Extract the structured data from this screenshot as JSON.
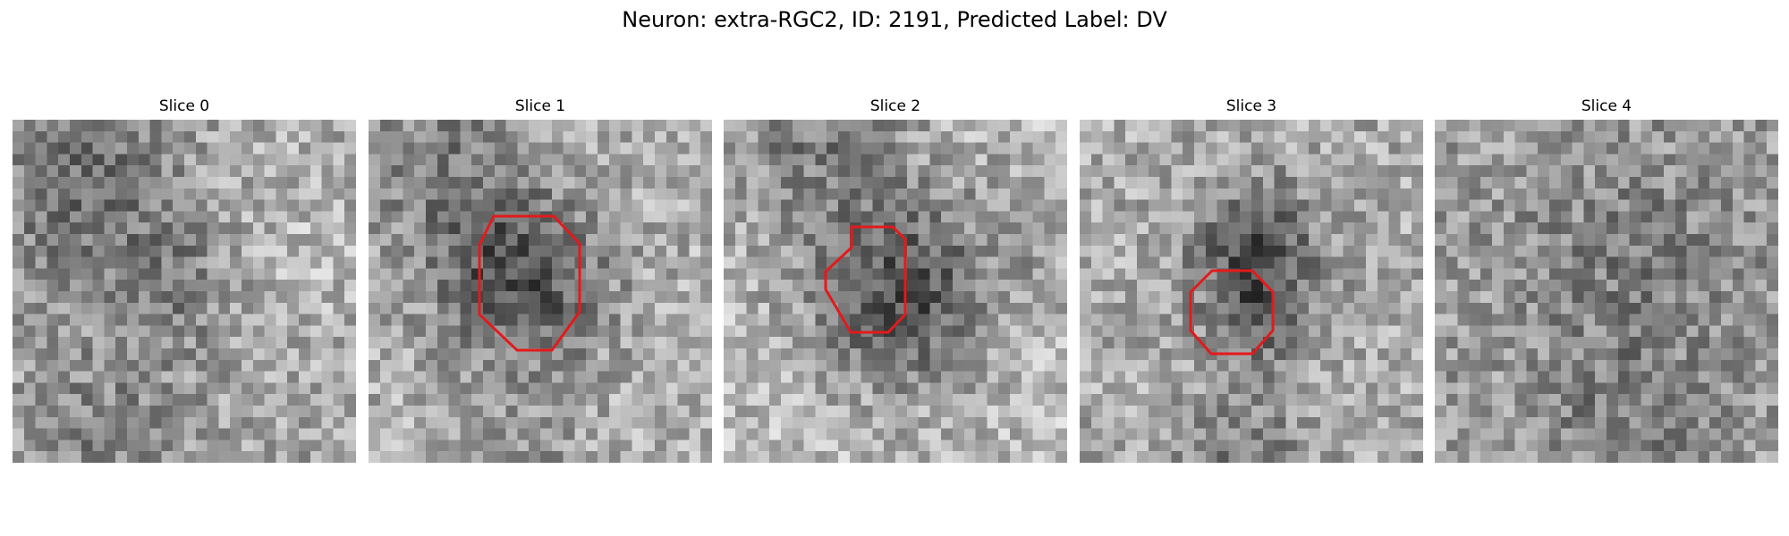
{
  "figure": {
    "title": "Neuron: extra-RGC2, ID: 2191, Predicted Label: DV"
  },
  "colors": {
    "contour": "#e31a1c",
    "background": "#ffffff"
  },
  "slices": [
    {
      "label": "Slice 0"
    },
    {
      "label": "Slice 1"
    },
    {
      "label": "Slice 2"
    },
    {
      "label": "Slice 3"
    },
    {
      "label": "Slice 4"
    }
  ]
}
